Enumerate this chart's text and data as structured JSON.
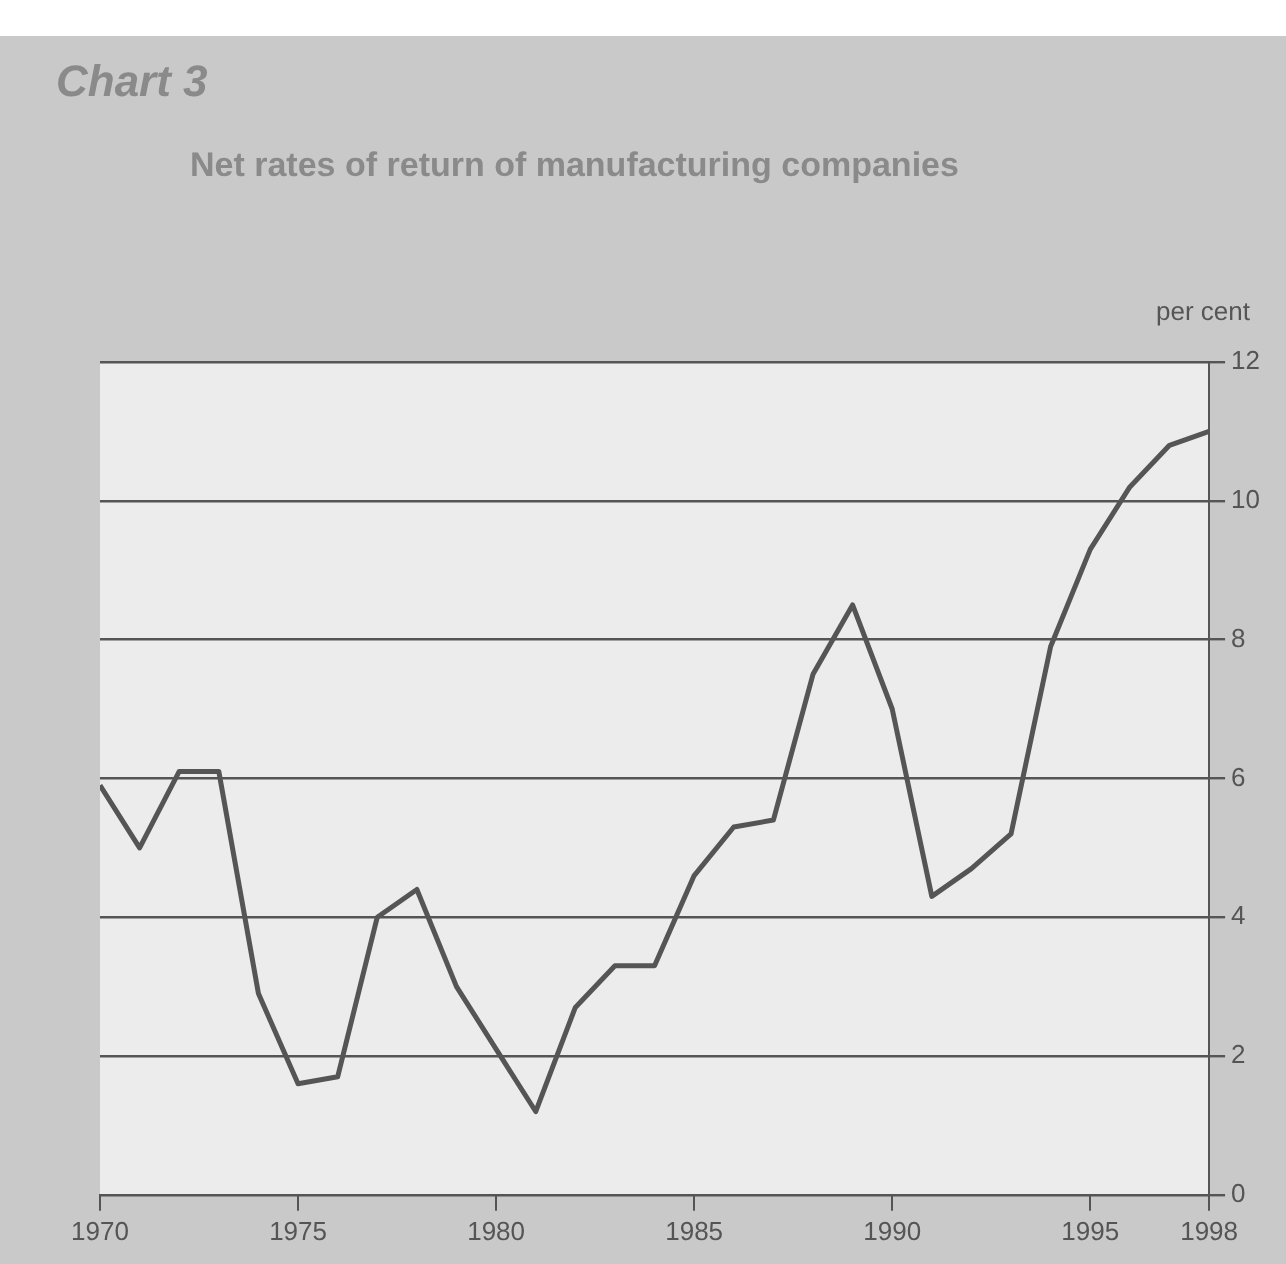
{
  "chart_data": {
    "type": "line",
    "title": "Chart 3",
    "subtitle": "Net rates of return of manufacturing companies",
    "ylabel": "per cent",
    "x": [
      1970,
      1971,
      1972,
      1973,
      1974,
      1975,
      1976,
      1977,
      1978,
      1979,
      1980,
      1981,
      1982,
      1983,
      1984,
      1985,
      1986,
      1987,
      1988,
      1989,
      1990,
      1991,
      1992,
      1993,
      1994,
      1995,
      1996,
      1997,
      1998
    ],
    "series": [
      {
        "color": "#555555",
        "values": [
          5.9,
          5.0,
          6.1,
          6.1,
          2.9,
          1.6,
          1.7,
          4.0,
          4.4,
          3.0,
          2.1,
          1.2,
          2.7,
          3.3,
          3.3,
          4.6,
          5.3,
          5.4,
          7.5,
          8.5,
          7.0,
          4.3,
          4.7,
          5.2,
          7.9,
          9.3,
          10.2,
          10.8,
          11.0
        ]
      }
    ],
    "xlim": [
      1970,
      1998
    ],
    "xticks": [
      1970,
      1975,
      1980,
      1985,
      1990,
      1995,
      1998
    ],
    "ylim": [
      0,
      12
    ],
    "yticks": [
      0,
      2,
      4,
      6,
      8,
      10,
      12
    ],
    "grid": "y",
    "legend": false,
    "marker": "none",
    "line_style": "solid"
  }
}
